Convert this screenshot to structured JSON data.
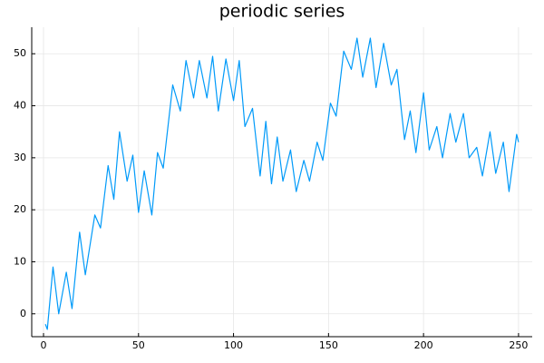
{
  "chart_data": {
    "type": "line",
    "title": "periodic series",
    "x": [
      1,
      2,
      5,
      8,
      12,
      15,
      19,
      22,
      27,
      30,
      34,
      37,
      40,
      44,
      47,
      50,
      53,
      57,
      60,
      63,
      68,
      72,
      75,
      79,
      82,
      86,
      89,
      92,
      96,
      100,
      103,
      106,
      110,
      114,
      117,
      120,
      123,
      126,
      130,
      133,
      137,
      140,
      144,
      147,
      151,
      154,
      158,
      162,
      165,
      168,
      172,
      175,
      179,
      183,
      186,
      190,
      193,
      196,
      200,
      203,
      207,
      210,
      214,
      217,
      221,
      224,
      228,
      231,
      235,
      238,
      242,
      245,
      249,
      250
    ],
    "series": [
      {
        "color": "#009af9",
        "values": [
          -2,
          -3,
          9,
          0,
          8,
          1,
          15.7,
          7.5,
          19,
          16.5,
          28.5,
          22,
          35,
          25.5,
          30.5,
          19.5,
          27.5,
          19,
          31,
          28,
          44,
          39,
          48.7,
          41.5,
          48.7,
          41.5,
          49.5,
          39,
          49,
          41,
          48.7,
          36,
          39.5,
          26.5,
          37,
          25,
          34,
          25.5,
          31.5,
          23.5,
          29.5,
          25.5,
          33,
          29.5,
          40.5,
          38,
          50.5,
          47,
          53,
          45.5,
          53,
          43.5,
          52,
          44,
          47,
          33.5,
          39,
          31,
          42.5,
          31.5,
          36,
          30,
          38.5,
          33,
          38.5,
          30,
          32,
          26.5,
          35,
          27,
          33,
          23.5,
          34.5,
          33
        ]
      }
    ],
    "xlim": [
      -6.2,
      257.2
    ],
    "xticks": [
      0,
      50,
      100,
      150,
      200,
      250
    ],
    "ylim": [
      -4.4,
      55.1
    ],
    "yticks": [
      0,
      10,
      20,
      30,
      40,
      50
    ],
    "grid": true
  }
}
